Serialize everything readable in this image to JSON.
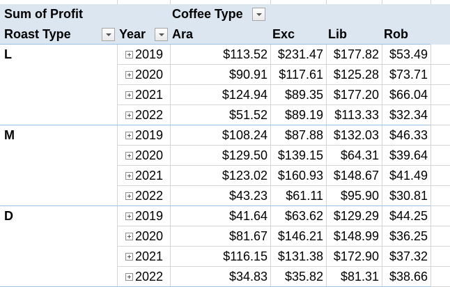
{
  "pivot": {
    "value_field": "Sum of Profit",
    "column_field": "Coffee Type",
    "row_field": "Roast Type",
    "year_field": "Year",
    "columns": [
      "Ara",
      "Exc",
      "Lib",
      "Rob"
    ],
    "groups": [
      {
        "roast": "L",
        "rows": [
          {
            "year": "2019",
            "values": [
              "$113.52",
              "$231.47",
              "$177.82",
              "$53.49"
            ]
          },
          {
            "year": "2020",
            "values": [
              "$90.91",
              "$117.61",
              "$125.28",
              "$73.71"
            ]
          },
          {
            "year": "2021",
            "values": [
              "$124.94",
              "$89.35",
              "$177.20",
              "$66.04"
            ]
          },
          {
            "year": "2022",
            "values": [
              "$51.52",
              "$89.19",
              "$113.33",
              "$32.34"
            ]
          }
        ]
      },
      {
        "roast": "M",
        "rows": [
          {
            "year": "2019",
            "values": [
              "$108.24",
              "$87.88",
              "$132.03",
              "$46.33"
            ]
          },
          {
            "year": "2020",
            "values": [
              "$129.50",
              "$139.15",
              "$64.31",
              "$39.64"
            ]
          },
          {
            "year": "2021",
            "values": [
              "$123.02",
              "$160.93",
              "$148.67",
              "$41.49"
            ]
          },
          {
            "year": "2022",
            "values": [
              "$43.23",
              "$61.11",
              "$95.90",
              "$30.81"
            ]
          }
        ]
      },
      {
        "roast": "D",
        "rows": [
          {
            "year": "2019",
            "values": [
              "$41.64",
              "$63.62",
              "$129.29",
              "$44.25"
            ]
          },
          {
            "year": "2020",
            "values": [
              "$81.67",
              "$146.21",
              "$148.99",
              "$36.25"
            ]
          },
          {
            "year": "2021",
            "values": [
              "$116.15",
              "$131.38",
              "$172.90",
              "$37.32"
            ]
          },
          {
            "year": "2022",
            "values": [
              "$34.83",
              "$35.82",
              "$81.31",
              "$38.66"
            ]
          }
        ]
      }
    ],
    "icons": {
      "filter": "dropdown-arrow-icon",
      "expand": "expand-plus-icon"
    },
    "colors": {
      "header_fill": "#dce6f1",
      "group_divider": "#9bc2e6",
      "gridline": "#d4d4d4"
    }
  }
}
